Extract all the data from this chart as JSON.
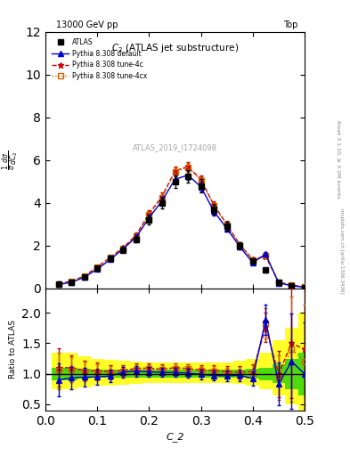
{
  "title_top": "13000 GeV pp",
  "title_right": "Top",
  "main_title": "C$_2$ (ATLAS jet substructure)",
  "watermark": "ATLAS_2019_I1724098",
  "right_label": "Rivet 3.1.10, ≥ 3.2M events",
  "xlabel": "C_2",
  "ylabel_main": "d$\\frac{1}{\\sigma}$ $\\frac{d\\sigma}{d C_2}$",
  "ylabel_ratio": "Ratio to ATLAS",
  "xlim": [
    0,
    0.5
  ],
  "ylim_main": [
    0,
    12
  ],
  "ylim_ratio": [
    0.4,
    2.4
  ],
  "x_data": [
    0.025,
    0.05,
    0.075,
    0.1,
    0.125,
    0.15,
    0.175,
    0.2,
    0.225,
    0.25,
    0.275,
    0.3,
    0.325,
    0.35,
    0.375,
    0.4,
    0.425,
    0.45,
    0.475,
    0.5
  ],
  "atlas_y": [
    0.2,
    0.3,
    0.55,
    0.95,
    1.4,
    1.8,
    2.3,
    3.2,
    4.0,
    5.0,
    5.25,
    4.8,
    3.7,
    2.9,
    2.0,
    1.3,
    0.85,
    0.3,
    0.1,
    0.05
  ],
  "atlas_yerr": [
    0.05,
    0.05,
    0.07,
    0.1,
    0.12,
    0.12,
    0.15,
    0.2,
    0.25,
    0.3,
    0.3,
    0.3,
    0.25,
    0.2,
    0.15,
    0.12,
    0.1,
    0.08,
    0.05,
    0.03
  ],
  "pythia_default_y": [
    0.18,
    0.28,
    0.52,
    0.9,
    1.35,
    1.85,
    2.4,
    3.3,
    4.1,
    5.1,
    5.3,
    4.75,
    3.6,
    2.8,
    1.95,
    1.2,
    1.6,
    0.25,
    0.12,
    0.05
  ],
  "pythia_default_yerr": [
    0.03,
    0.03,
    0.05,
    0.07,
    0.09,
    0.1,
    0.12,
    0.15,
    0.18,
    0.2,
    0.22,
    0.2,
    0.18,
    0.15,
    0.12,
    0.1,
    0.1,
    0.08,
    0.05,
    0.03
  ],
  "pythia_4c_y": [
    0.22,
    0.33,
    0.58,
    1.0,
    1.45,
    1.9,
    2.5,
    3.5,
    4.3,
    5.5,
    5.7,
    5.1,
    3.9,
    3.0,
    2.05,
    1.35,
    1.5,
    0.3,
    0.15,
    0.07
  ],
  "pythia_4c_yerr": [
    0.03,
    0.03,
    0.05,
    0.07,
    0.09,
    0.1,
    0.12,
    0.15,
    0.18,
    0.2,
    0.22,
    0.2,
    0.18,
    0.15,
    0.12,
    0.1,
    0.1,
    0.08,
    0.05,
    0.03
  ],
  "pythia_4cx_y": [
    0.21,
    0.32,
    0.57,
    0.98,
    1.43,
    1.88,
    2.45,
    3.45,
    4.25,
    5.45,
    5.65,
    5.05,
    3.85,
    2.95,
    2.02,
    1.32,
    1.55,
    0.28,
    0.14,
    0.06
  ],
  "pythia_4cx_yerr": [
    0.03,
    0.03,
    0.05,
    0.07,
    0.09,
    0.1,
    0.12,
    0.15,
    0.18,
    0.2,
    0.22,
    0.2,
    0.18,
    0.15,
    0.12,
    0.1,
    0.1,
    0.08,
    0.05,
    0.03
  ],
  "green_band_lo": [
    0.9,
    0.9,
    0.92,
    0.93,
    0.93,
    0.93,
    0.93,
    0.93,
    0.93,
    0.93,
    0.93,
    0.93,
    0.93,
    0.93,
    0.93,
    0.92,
    0.9,
    0.85,
    0.75,
    0.65
  ],
  "green_band_hi": [
    1.1,
    1.1,
    1.08,
    1.07,
    1.07,
    1.07,
    1.07,
    1.07,
    1.07,
    1.07,
    1.07,
    1.07,
    1.07,
    1.07,
    1.07,
    1.08,
    1.1,
    1.15,
    1.25,
    1.35
  ],
  "yellow_band_lo": [
    0.75,
    0.75,
    0.78,
    0.8,
    0.8,
    0.82,
    0.83,
    0.85,
    0.85,
    0.85,
    0.85,
    0.85,
    0.85,
    0.85,
    0.83,
    0.8,
    0.75,
    0.65,
    0.5,
    0.4
  ],
  "yellow_band_hi": [
    1.35,
    1.35,
    1.28,
    1.25,
    1.23,
    1.22,
    1.2,
    1.18,
    1.18,
    1.18,
    1.18,
    1.18,
    1.18,
    1.18,
    1.22,
    1.25,
    1.35,
    1.55,
    1.75,
    2.0
  ],
  "color_atlas": "#000000",
  "color_default": "#0000cc",
  "color_4c": "#cc0000",
  "color_4cx": "#cc6600",
  "color_green": "#00cc00",
  "color_yellow": "#ffff00"
}
